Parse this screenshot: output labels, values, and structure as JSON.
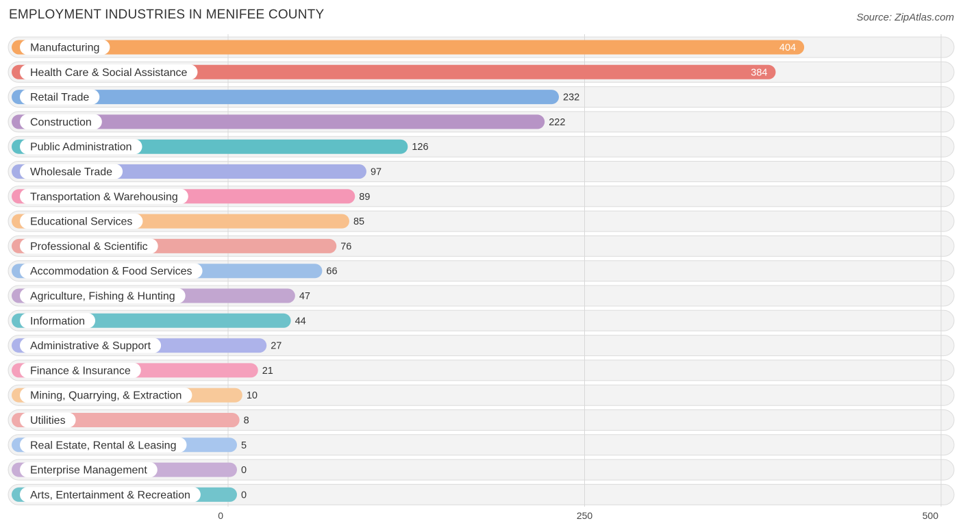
{
  "header": {
    "title": "EMPLOYMENT INDUSTRIES IN MENIFEE COUNTY",
    "source": "Source: ZipAtlas.com"
  },
  "chart_data": {
    "type": "bar",
    "orientation": "horizontal",
    "title": "EMPLOYMENT INDUSTRIES IN MENIFEE COUNTY",
    "xlabel": "",
    "ylabel": "",
    "xlim": [
      0,
      500
    ],
    "xticks": [
      0,
      250,
      500
    ],
    "grid": true,
    "categories": [
      "Manufacturing",
      "Health Care & Social Assistance",
      "Retail Trade",
      "Construction",
      "Public Administration",
      "Wholesale Trade",
      "Transportation & Warehousing",
      "Educational Services",
      "Professional & Scientific",
      "Accommodation & Food Services",
      "Agriculture, Fishing & Hunting",
      "Information",
      "Administrative & Support",
      "Finance & Insurance",
      "Mining, Quarrying, & Extraction",
      "Utilities",
      "Real Estate, Rental & Leasing",
      "Enterprise Management",
      "Arts, Entertainment & Recreation"
    ],
    "values": [
      404,
      384,
      232,
      222,
      126,
      97,
      89,
      85,
      76,
      66,
      47,
      44,
      27,
      21,
      10,
      8,
      5,
      0,
      0
    ],
    "colors": [
      "#f7a660",
      "#e87b74",
      "#80aee2",
      "#b794c6",
      "#5fbfc6",
      "#a6aee6",
      "#f597b6",
      "#f8c08c",
      "#eea5a1",
      "#9dbfe8",
      "#c2a6d0",
      "#6dc2ca",
      "#adb3ea",
      "#f5a0bc",
      "#f8c99a",
      "#f0abab",
      "#a8c6ee",
      "#c8aed6",
      "#72c4cc"
    ]
  }
}
